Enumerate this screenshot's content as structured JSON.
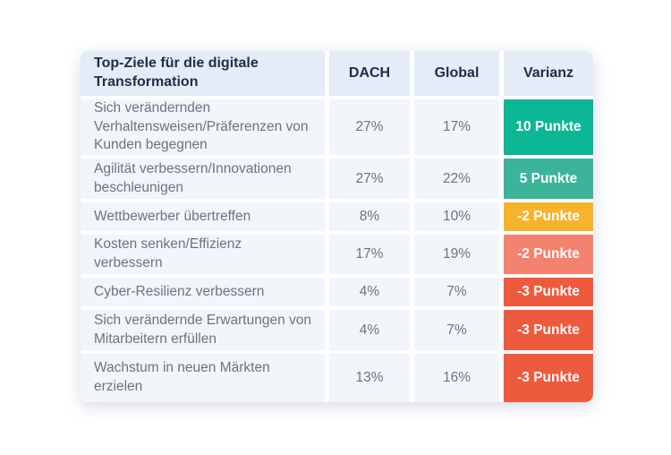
{
  "page": {
    "background": "#ffffff"
  },
  "colors": {
    "header_bg": "#e3ecf7",
    "row_bg": "#f2f5fa",
    "header_text": "#1f2d45",
    "body_text": "#6b7480",
    "variance_text": "#ffffff",
    "green_strong": "#0db695",
    "green_light": "#3cb49a",
    "amber": "#f7b32b",
    "salmon": "#f3826e",
    "red": "#ee5a3e"
  },
  "table": {
    "header": {
      "topic": "Top-Ziele für die digitale Transformation",
      "dach": "DACH",
      "global": "Global",
      "variance": "Varianz"
    },
    "rows": [
      {
        "label": "Sich verändernden Verhaltensweisen/Präferenzen von Kunden begegnen",
        "dach": "27%",
        "global": "17%",
        "variance": "10 Punkte",
        "variance_color": "#0db695"
      },
      {
        "label": "Agilität verbessern/Innovationen beschleunigen",
        "dach": "27%",
        "global": "22%",
        "variance": "5 Punkte",
        "variance_color": "#3cb49a"
      },
      {
        "label": "Wettbewerber übertreffen",
        "dach": "8%",
        "global": "10%",
        "variance": "-2 Punkte",
        "variance_color": "#f7b32b"
      },
      {
        "label": "Kosten senken/Effizienz verbessern",
        "dach": "17%",
        "global": "19%",
        "variance": "-2 Punkte",
        "variance_color": "#f3826e"
      },
      {
        "label": "Cyber-Resilienz verbessern",
        "dach": "4%",
        "global": "7%",
        "variance": "-3 Punkte",
        "variance_color": "#ee5a3e"
      },
      {
        "label": "Sich verändernde Erwartungen von Mitarbeitern erfüllen",
        "dach": "4%",
        "global": "7%",
        "variance": "-3 Punkte",
        "variance_color": "#ee5a3e"
      },
      {
        "label": "Wachstum in neuen Märkten erzielen",
        "dach": "13%",
        "global": "16%",
        "variance": "-3 Punkte",
        "variance_color": "#ee5a3e"
      }
    ]
  },
  "chart_data": {
    "type": "table",
    "title": "Top-Ziele für die digitale Transformation",
    "columns": [
      "Top-Ziele für die digitale Transformation",
      "DACH",
      "Global",
      "Varianz"
    ],
    "rows": [
      [
        "Sich verändernden Verhaltensweisen/Präferenzen von Kunden begegnen",
        "27%",
        "17%",
        "10 Punkte"
      ],
      [
        "Agilität verbessern/Innovationen beschleunigen",
        "27%",
        "22%",
        "5 Punkte"
      ],
      [
        "Wettbewerber übertreffen",
        "8%",
        "10%",
        "-2 Punkte"
      ],
      [
        "Kosten senken/Effizienz verbessern",
        "17%",
        "19%",
        "-2 Punkte"
      ],
      [
        "Cyber-Resilienz verbessern",
        "4%",
        "7%",
        "-3 Punkte"
      ],
      [
        "Sich verändernde Erwartungen von Mitarbeitern erfüllen",
        "4%",
        "7%",
        "-3 Punkte"
      ],
      [
        "Wachstum in neuen Märkten erzielen",
        "13%",
        "16%",
        "-3 Punkte"
      ]
    ],
    "series": [
      {
        "name": "DACH",
        "values": [
          27,
          27,
          8,
          17,
          4,
          4,
          13
        ]
      },
      {
        "name": "Global",
        "values": [
          17,
          22,
          10,
          19,
          7,
          7,
          16
        ]
      },
      {
        "name": "Varianz (Punkte)",
        "values": [
          10,
          5,
          -2,
          -2,
          -3,
          -3,
          -3
        ]
      }
    ],
    "variance_cell_colors": [
      "#0db695",
      "#3cb49a",
      "#f7b32b",
      "#f3826e",
      "#ee5a3e",
      "#ee5a3e",
      "#ee5a3e"
    ],
    "legend_position": "none",
    "grid": false
  }
}
